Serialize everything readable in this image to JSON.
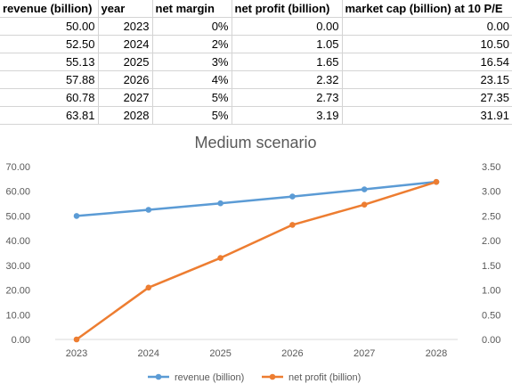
{
  "table": {
    "headers": [
      "revenue (billion)",
      "year",
      "net margin",
      "net profit (billion)",
      "market cap (billion) at 10 P/E"
    ],
    "rows": [
      [
        "50.00",
        "2023",
        "0%",
        "0.00",
        "0.00"
      ],
      [
        "52.50",
        "2024",
        "2%",
        "1.05",
        "10.50"
      ],
      [
        "55.13",
        "2025",
        "3%",
        "1.65",
        "16.54"
      ],
      [
        "57.88",
        "2026",
        "4%",
        "2.32",
        "23.15"
      ],
      [
        "60.78",
        "2027",
        "5%",
        "2.73",
        "27.35"
      ],
      [
        "63.81",
        "2028",
        "5%",
        "3.19",
        "31.91"
      ]
    ]
  },
  "chart_data": {
    "type": "line",
    "title": "Medium scenario",
    "x": [
      "2023",
      "2024",
      "2025",
      "2026",
      "2027",
      "2028"
    ],
    "series": [
      {
        "name": "revenue (billion)",
        "axis": "left",
        "color": "#5b9bd5",
        "values": [
          50.0,
          52.5,
          55.13,
          57.88,
          60.78,
          63.81
        ]
      },
      {
        "name": "net profit (billion)",
        "axis": "right",
        "color": "#ed7d31",
        "values": [
          0.0,
          1.05,
          1.65,
          2.32,
          2.73,
          3.19
        ]
      }
    ],
    "y_left": {
      "min": 0,
      "max": 70,
      "step": 10,
      "tick_labels": [
        "0.00",
        "10.00",
        "20.00",
        "30.00",
        "40.00",
        "50.00",
        "60.00",
        "70.00"
      ]
    },
    "y_right": {
      "min": 0,
      "max": 3.5,
      "step": 0.5,
      "tick_labels": [
        "0.00",
        "0.50",
        "1.00",
        "1.50",
        "2.00",
        "2.50",
        "3.00",
        "3.50"
      ]
    },
    "grid": false,
    "legend_position": "bottom"
  }
}
